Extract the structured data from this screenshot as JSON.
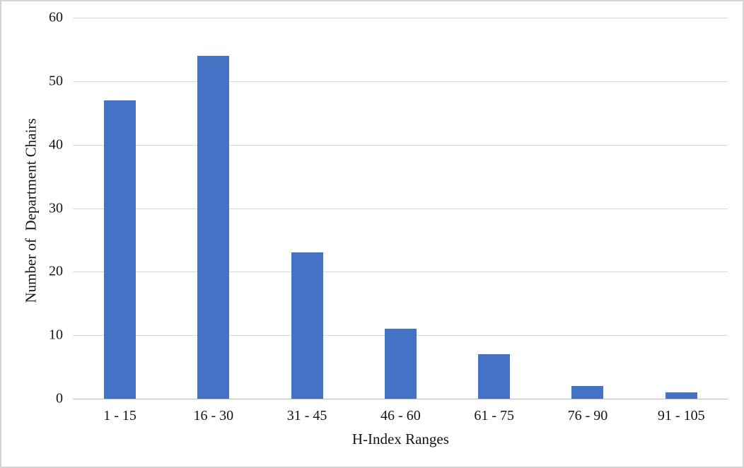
{
  "figure": {
    "background": "#FFFFFF",
    "border_color": "#D4D4D4"
  },
  "chart_data": {
    "type": "bar",
    "title": "",
    "categories": [
      "1 - 15",
      "16 - 30",
      "31 - 45",
      "46 - 60",
      "61 - 75",
      "76 - 90",
      "91 - 105"
    ],
    "values": [
      47,
      54,
      23,
      11,
      7,
      2,
      1
    ],
    "xlabel": "H-Index Ranges",
    "ylabel": "Number of  Department Chairs",
    "ylim": [
      0,
      60
    ],
    "yticks": [
      0,
      10,
      20,
      30,
      40,
      50,
      60
    ],
    "grid": true,
    "legend": false,
    "bar_color": "#4472C4",
    "gridline_color": "#D9D9D9",
    "axis_line_color": "#BFBFBF",
    "text_color": "#141414"
  }
}
